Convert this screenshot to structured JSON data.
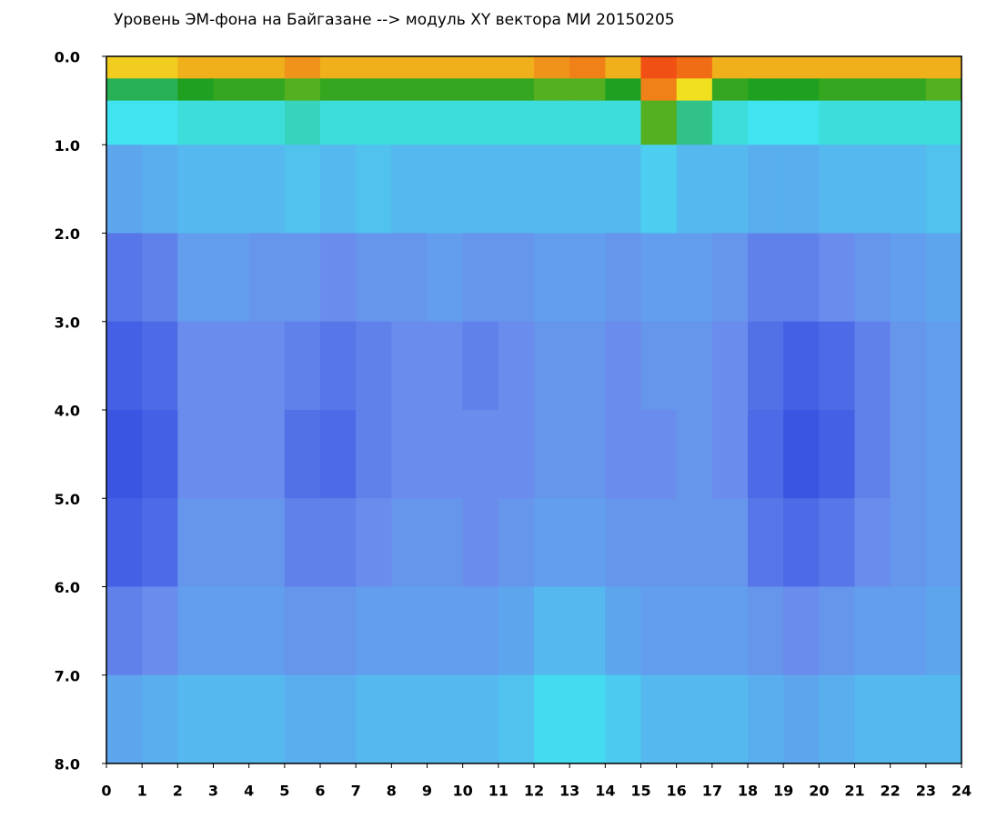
{
  "chart_data": {
    "type": "heatmap",
    "title": "Уровень ЭМ-фона на Байгазане  -->  модуль XY вектора МИ  20150205",
    "xbins": [
      0,
      1,
      2,
      3,
      4,
      5,
      6,
      7,
      8,
      9,
      10,
      11,
      12,
      13,
      14,
      15,
      16,
      17,
      18,
      19,
      20,
      21,
      22,
      23,
      24
    ],
    "ybins": [
      0,
      0.25,
      0.5,
      1,
      2,
      3,
      4,
      5,
      6,
      7,
      8
    ],
    "values": [
      [
        0.82,
        0.82,
        0.85,
        0.85,
        0.85,
        0.88,
        0.85,
        0.85,
        0.85,
        0.85,
        0.85,
        0.85,
        0.88,
        0.9,
        0.85,
        0.95,
        0.92,
        0.85,
        0.85,
        0.85,
        0.85,
        0.85,
        0.85,
        0.85
      ],
      [
        0.55,
        0.55,
        0.6,
        0.62,
        0.62,
        0.65,
        0.62,
        0.62,
        0.62,
        0.62,
        0.62,
        0.62,
        0.65,
        0.65,
        0.6,
        0.9,
        0.8,
        0.62,
        0.6,
        0.6,
        0.62,
        0.62,
        0.62,
        0.65
      ],
      [
        0.4,
        0.4,
        0.42,
        0.42,
        0.42,
        0.45,
        0.42,
        0.42,
        0.42,
        0.42,
        0.42,
        0.42,
        0.42,
        0.42,
        0.42,
        0.65,
        0.5,
        0.42,
        0.4,
        0.4,
        0.42,
        0.42,
        0.42,
        0.42
      ],
      [
        0.26,
        0.28,
        0.3,
        0.3,
        0.3,
        0.32,
        0.3,
        0.32,
        0.3,
        0.3,
        0.3,
        0.3,
        0.3,
        0.3,
        0.3,
        0.35,
        0.3,
        0.3,
        0.28,
        0.28,
        0.3,
        0.3,
        0.3,
        0.32
      ],
      [
        0.16,
        0.18,
        0.24,
        0.24,
        0.22,
        0.22,
        0.2,
        0.22,
        0.22,
        0.24,
        0.22,
        0.22,
        0.24,
        0.24,
        0.22,
        0.24,
        0.24,
        0.22,
        0.18,
        0.18,
        0.2,
        0.22,
        0.24,
        0.26
      ],
      [
        0.12,
        0.14,
        0.2,
        0.2,
        0.2,
        0.18,
        0.16,
        0.18,
        0.2,
        0.2,
        0.18,
        0.2,
        0.22,
        0.22,
        0.2,
        0.22,
        0.22,
        0.2,
        0.15,
        0.12,
        0.14,
        0.18,
        0.22,
        0.24
      ],
      [
        0.1,
        0.12,
        0.2,
        0.2,
        0.2,
        0.15,
        0.14,
        0.18,
        0.2,
        0.2,
        0.2,
        0.2,
        0.22,
        0.22,
        0.2,
        0.2,
        0.22,
        0.2,
        0.14,
        0.1,
        0.12,
        0.18,
        0.22,
        0.24
      ],
      [
        0.12,
        0.14,
        0.22,
        0.22,
        0.22,
        0.18,
        0.18,
        0.2,
        0.22,
        0.22,
        0.2,
        0.22,
        0.24,
        0.24,
        0.22,
        0.22,
        0.22,
        0.22,
        0.16,
        0.14,
        0.16,
        0.2,
        0.22,
        0.24
      ],
      [
        0.18,
        0.2,
        0.24,
        0.24,
        0.24,
        0.22,
        0.22,
        0.24,
        0.24,
        0.24,
        0.24,
        0.26,
        0.3,
        0.3,
        0.26,
        0.24,
        0.24,
        0.24,
        0.22,
        0.2,
        0.22,
        0.24,
        0.24,
        0.26
      ],
      [
        0.26,
        0.28,
        0.3,
        0.3,
        0.3,
        0.28,
        0.28,
        0.3,
        0.3,
        0.3,
        0.3,
        0.32,
        0.38,
        0.38,
        0.34,
        0.3,
        0.3,
        0.3,
        0.28,
        0.26,
        0.28,
        0.3,
        0.3,
        0.3
      ]
    ],
    "zlim": [
      0,
      1
    ],
    "colorscale": [
      "#0a1ed8",
      "#6a8cec",
      "#40e4f0",
      "#20a020",
      "#f0e020",
      "#f02010"
    ],
    "xlim": [
      0,
      24
    ],
    "xticks": [
      0,
      1,
      2,
      3,
      4,
      5,
      6,
      7,
      8,
      9,
      10,
      11,
      12,
      13,
      14,
      15,
      16,
      17,
      18,
      19,
      20,
      21,
      22,
      23,
      24
    ],
    "ylim": [
      0,
      8
    ],
    "y_inverted": true,
    "yticks": [
      {
        "value": 0,
        "label": "0.0"
      },
      {
        "value": 1,
        "label": "1.0"
      },
      {
        "value": 2,
        "label": "2.0"
      },
      {
        "value": 3,
        "label": "3.0"
      },
      {
        "value": 4,
        "label": "4.0"
      },
      {
        "value": 5,
        "label": "5.0"
      },
      {
        "value": 6,
        "label": "6.0"
      },
      {
        "value": 7,
        "label": "7.0"
      },
      {
        "value": 8,
        "label": "8.0"
      }
    ]
  }
}
